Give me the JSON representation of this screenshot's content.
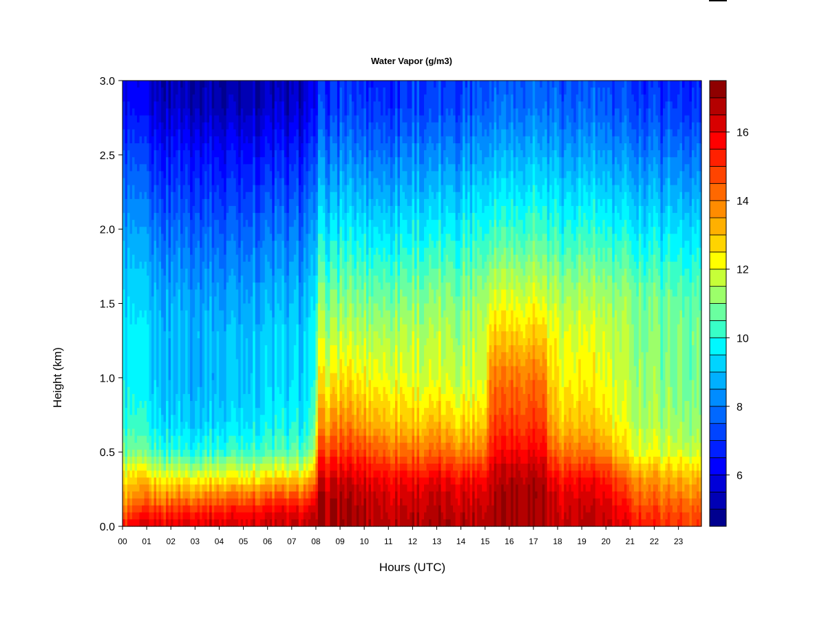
{
  "chart_data": {
    "type": "heatmap",
    "title": "Water Vapor (g/m3)",
    "xlabel": "Hours (UTC)",
    "ylabel": "Height (km)",
    "x_ticks": [
      "00",
      "01",
      "02",
      "03",
      "04",
      "05",
      "06",
      "07",
      "08",
      "09",
      "10",
      "11",
      "12",
      "13",
      "14",
      "15",
      "16",
      "17",
      "18",
      "19",
      "20",
      "21",
      "22",
      "23"
    ],
    "y_ticks": [
      "0.0",
      "0.5",
      "1.0",
      "1.5",
      "2.0",
      "2.5",
      "3.0"
    ],
    "xlim": [
      0,
      23.95
    ],
    "ylim": [
      0,
      3.0
    ],
    "colorbar": {
      "ticks": [
        "6",
        "8",
        "10",
        "12",
        "14",
        "16"
      ],
      "range": [
        4.5,
        17.5
      ],
      "levels": [
        4.5,
        5.0,
        5.5,
        6.0,
        6.5,
        7.0,
        7.5,
        8.0,
        8.5,
        9.0,
        9.5,
        10.0,
        10.5,
        11.0,
        11.5,
        12.0,
        12.5,
        13.0,
        13.5,
        14.0,
        14.5,
        15.0,
        15.5,
        16.0,
        16.5,
        17.0,
        17.5
      ],
      "colors": [
        "#00008f",
        "#0000b4",
        "#0000d8",
        "#0000ff",
        "#0020ff",
        "#0044ff",
        "#0068ff",
        "#008cff",
        "#00b0ff",
        "#00d4ff",
        "#00f8ff",
        "#38ffc7",
        "#6affa0",
        "#9cff6a",
        "#c7ff38",
        "#ffff00",
        "#ffd400",
        "#ffb000",
        "#ff8c00",
        "#ff6800",
        "#ff4400",
        "#ff2000",
        "#ff0000",
        "#d80000",
        "#b40000",
        "#8f0000"
      ]
    },
    "profiles": {
      "heights_km": [
        0.0,
        0.1,
        0.2,
        0.3,
        0.4,
        0.5,
        0.7,
        1.0,
        1.3,
        1.6,
        1.9,
        2.2,
        2.5,
        2.8,
        3.0
      ],
      "hours": [
        0,
        1,
        2,
        3,
        4,
        5,
        6,
        7,
        7.9,
        8.1,
        9,
        10,
        11,
        12,
        13,
        14,
        15,
        15.2,
        16,
        17,
        17.5,
        17.7,
        18,
        19,
        20,
        21,
        22,
        23,
        23.95
      ],
      "values": [
        [
          15.5,
          14.2,
          13.2,
          12.6,
          11.8,
          10.8,
          10.0,
          9.6,
          9.5,
          9.1,
          8.6,
          7.9,
          7.2,
          6.2,
          5.8
        ],
        [
          16.0,
          15.0,
          13.8,
          12.8,
          11.6,
          10.5,
          9.7,
          9.3,
          9.2,
          8.8,
          8.3,
          7.6,
          6.8,
          5.9,
          5.6
        ],
        [
          16.2,
          15.2,
          13.8,
          12.6,
          11.4,
          10.2,
          9.3,
          8.9,
          9.0,
          8.6,
          8.0,
          7.3,
          6.6,
          5.6,
          5.3
        ],
        [
          16.3,
          15.3,
          13.9,
          12.6,
          11.3,
          10.1,
          9.2,
          8.8,
          8.9,
          8.5,
          7.9,
          7.2,
          6.5,
          5.4,
          5.1
        ],
        [
          16.4,
          15.5,
          14.1,
          12.7,
          11.4,
          10.2,
          9.3,
          8.9,
          8.9,
          8.4,
          7.8,
          7.1,
          6.4,
          5.3,
          5.0
        ],
        [
          16.4,
          15.6,
          14.3,
          12.8,
          11.5,
          10.3,
          9.5,
          9.1,
          9.0,
          8.5,
          7.9,
          7.2,
          6.4,
          5.4,
          5.1
        ],
        [
          16.5,
          15.8,
          14.5,
          13.0,
          11.6,
          10.4,
          9.6,
          9.2,
          9.1,
          8.6,
          8.0,
          7.3,
          6.5,
          5.5,
          5.2
        ],
        [
          16.5,
          15.8,
          14.6,
          13.1,
          11.7,
          10.5,
          9.7,
          9.3,
          9.2,
          8.7,
          8.1,
          7.4,
          6.6,
          5.6,
          5.3
        ],
        [
          16.6,
          16.0,
          14.8,
          13.3,
          11.9,
          10.6,
          9.8,
          9.4,
          9.3,
          8.8,
          8.2,
          7.5,
          6.7,
          5.8,
          5.5
        ],
        [
          16.9,
          16.8,
          16.6,
          16.1,
          15.4,
          14.6,
          13.3,
          12.1,
          11.4,
          10.6,
          9.6,
          8.8,
          7.9,
          7.0,
          6.7
        ],
        [
          17.0,
          16.9,
          16.8,
          16.4,
          15.7,
          15.0,
          13.8,
          12.5,
          11.6,
          10.8,
          9.9,
          9.0,
          8.1,
          7.2,
          6.9
        ],
        [
          16.9,
          16.8,
          16.6,
          16.2,
          15.5,
          14.8,
          13.4,
          12.3,
          11.5,
          10.7,
          9.8,
          8.9,
          8.0,
          7.1,
          6.8
        ],
        [
          16.8,
          16.6,
          16.4,
          16.0,
          15.2,
          14.4,
          13.2,
          12.2,
          11.6,
          10.8,
          9.9,
          9.0,
          8.1,
          7.2,
          6.9
        ],
        [
          16.8,
          16.6,
          16.3,
          15.9,
          15.0,
          14.1,
          12.9,
          11.9,
          11.5,
          10.8,
          9.9,
          9.0,
          8.1,
          7.2,
          6.9
        ],
        [
          16.8,
          16.6,
          16.4,
          16.0,
          15.1,
          14.2,
          12.9,
          11.8,
          11.4,
          10.8,
          9.9,
          9.0,
          8.1,
          7.2,
          6.9
        ],
        [
          16.8,
          16.6,
          16.3,
          15.9,
          15.0,
          14.0,
          12.7,
          11.7,
          11.4,
          10.9,
          10.1,
          9.2,
          8.3,
          7.4,
          7.1
        ],
        [
          16.8,
          16.6,
          16.3,
          15.9,
          15.0,
          14.0,
          12.8,
          11.9,
          11.8,
          11.2,
          10.3,
          9.5,
          8.6,
          7.7,
          7.4
        ],
        [
          17.0,
          16.9,
          16.8,
          16.6,
          16.2,
          15.6,
          14.8,
          14.1,
          12.9,
          11.8,
          10.7,
          9.8,
          8.9,
          8.0,
          7.7
        ],
        [
          17.1,
          17.1,
          17.2,
          17.0,
          16.6,
          16.0,
          15.1,
          14.3,
          13.0,
          11.9,
          10.8,
          9.9,
          9.0,
          8.1,
          7.8
        ],
        [
          17.0,
          17.0,
          17.1,
          16.9,
          16.5,
          15.9,
          15.0,
          14.2,
          12.9,
          11.8,
          10.8,
          9.9,
          9.0,
          8.1,
          7.8
        ],
        [
          17.0,
          16.9,
          17.0,
          16.8,
          16.4,
          15.8,
          14.9,
          14.0,
          12.8,
          11.7,
          10.7,
          9.8,
          8.9,
          8.0,
          7.7
        ],
        [
          16.6,
          16.5,
          16.3,
          15.9,
          15.1,
          14.3,
          13.3,
          12.6,
          12.1,
          11.4,
          10.4,
          9.6,
          8.7,
          7.8,
          7.5
        ],
        [
          16.6,
          16.4,
          16.2,
          15.8,
          15.0,
          14.2,
          13.1,
          12.4,
          12.0,
          11.3,
          10.3,
          9.5,
          8.6,
          7.7,
          7.4
        ],
        [
          16.6,
          16.4,
          16.1,
          15.7,
          14.8,
          14.0,
          12.9,
          12.2,
          11.9,
          11.2,
          10.3,
          9.4,
          8.5,
          7.6,
          7.3
        ],
        [
          16.5,
          16.3,
          16.0,
          15.5,
          14.6,
          13.6,
          12.6,
          12.0,
          11.8,
          11.1,
          10.2,
          9.3,
          8.4,
          7.5,
          7.2
        ],
        [
          15.8,
          15.3,
          14.6,
          14.0,
          13.1,
          12.2,
          11.6,
          11.3,
          11.2,
          10.8,
          9.9,
          9.0,
          8.1,
          7.2,
          6.9
        ],
        [
          15.3,
          14.8,
          14.2,
          13.6,
          12.8,
          12.0,
          11.4,
          11.1,
          11.0,
          10.6,
          9.8,
          8.9,
          8.0,
          7.1,
          6.8
        ],
        [
          15.0,
          14.6,
          14.0,
          13.4,
          12.6,
          11.8,
          11.2,
          10.9,
          10.9,
          10.5,
          9.7,
          8.8,
          7.9,
          7.0,
          6.7
        ],
        [
          14.9,
          14.5,
          13.9,
          13.3,
          12.5,
          11.7,
          11.1,
          10.8,
          10.8,
          10.4,
          9.6,
          8.7,
          7.8,
          6.9,
          6.6
        ]
      ]
    }
  }
}
